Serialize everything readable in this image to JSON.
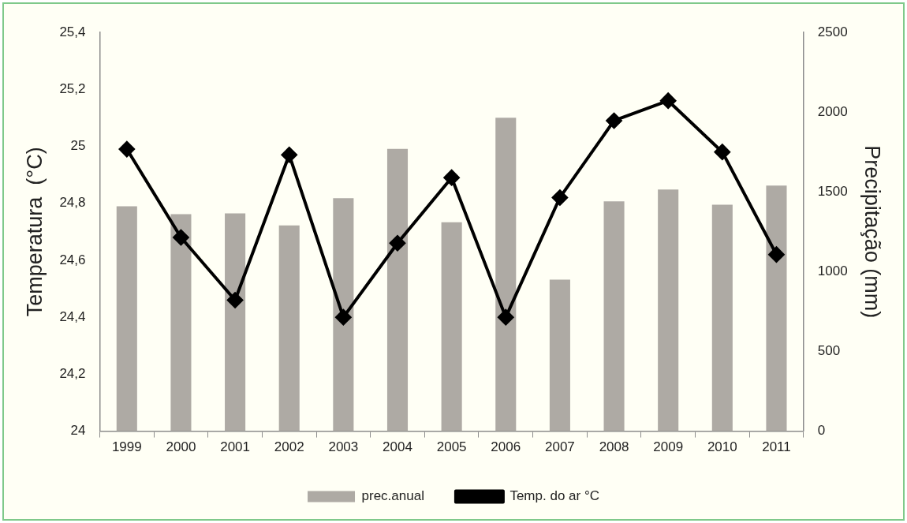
{
  "chart_data": {
    "type": "bar",
    "ylabel": "Temperatura  (°C)",
    "y2label": "Precipitação (mm)",
    "categories": [
      "1999",
      "2000",
      "2001",
      "2002",
      "2003",
      "2004",
      "2005",
      "2006",
      "2007",
      "2008",
      "2009",
      "2010",
      "2011"
    ],
    "series": [
      {
        "name": "prec.anual",
        "axis": "y2",
        "color": "#aeaaa4",
        "values": [
          1410,
          1360,
          1365,
          1290,
          1460,
          1770,
          1310,
          1965,
          950,
          1440,
          1515,
          1420,
          1540
        ]
      },
      {
        "name": "Temp. do ar °C",
        "type": "line",
        "axis": "y",
        "color": "#000000",
        "marker": "diamond",
        "line_style": "solid",
        "values": [
          24.99,
          24.68,
          24.46,
          24.97,
          24.4,
          24.66,
          24.89,
          24.4,
          24.82,
          25.09,
          25.16,
          24.98,
          24.62
        ]
      }
    ],
    "ylim": [
      24,
      25.4
    ],
    "yticks": [
      {
        "value": 24,
        "label": "24"
      },
      {
        "value": 24.2,
        "label": "24,2"
      },
      {
        "value": 24.4,
        "label": "24,4"
      },
      {
        "value": 24.6,
        "label": "24,6"
      },
      {
        "value": 24.8,
        "label": "24,8"
      },
      {
        "value": 25,
        "label": "25"
      },
      {
        "value": 25.2,
        "label": "25,2"
      },
      {
        "value": 25.4,
        "label": "25,4"
      }
    ],
    "y2lim": [
      0,
      2500
    ],
    "y2ticks": [
      0,
      500,
      1000,
      1500,
      2000,
      2500
    ],
    "grid": false,
    "legend": "bottom"
  }
}
